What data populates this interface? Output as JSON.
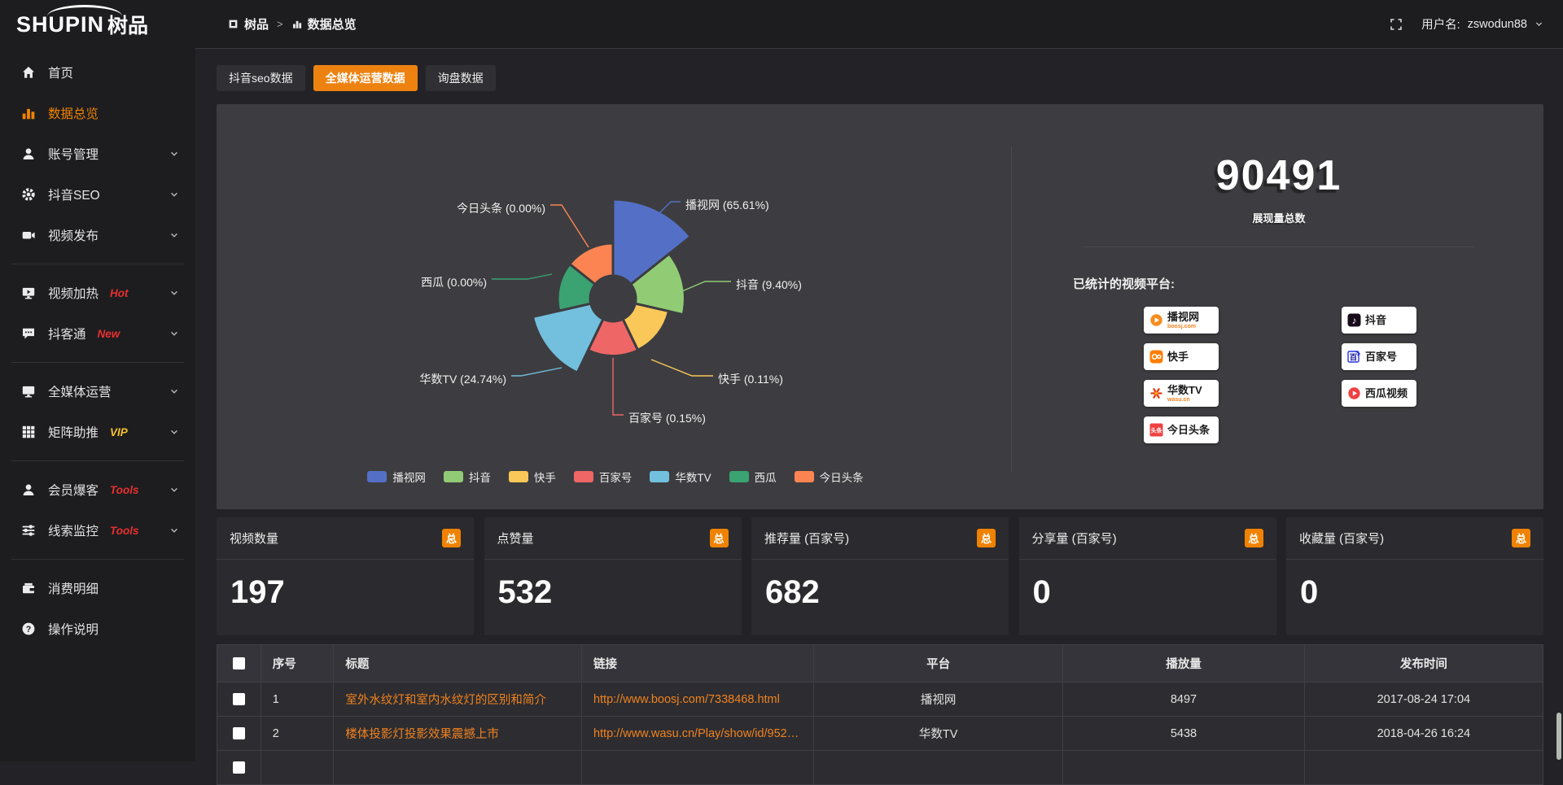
{
  "logo": {
    "latin": "SHUPIN",
    "cn": "树品"
  },
  "topbar": {
    "breadcrumb": {
      "root": "树品",
      "current": "数据总览"
    },
    "username_label": "用户名:",
    "username": "zswodun88"
  },
  "sidebar": {
    "items": [
      {
        "id": "homepage",
        "label": "首页",
        "icon": "home-icon"
      },
      {
        "id": "data-overview",
        "label": "数据总览",
        "icon": "bar-chart-icon",
        "active": true
      },
      {
        "id": "account-management",
        "label": "账号管理",
        "icon": "user-icon",
        "chevron": true
      },
      {
        "id": "douyin-seo",
        "label": "抖音SEO",
        "icon": "gear-icon",
        "chevron": true
      },
      {
        "id": "video-publish",
        "label": "视频发布",
        "icon": "video-camera-icon",
        "chevron": true
      },
      {
        "type": "divider"
      },
      {
        "id": "video-heating",
        "label": "视频加热",
        "icon": "monitor-play-icon",
        "badge": "Hot",
        "badge_color": "red",
        "chevron": true
      },
      {
        "id": "douketong",
        "label": "抖客通",
        "icon": "chat-icon",
        "badge": "New",
        "badge_color": "red",
        "chevron": true
      },
      {
        "type": "divider"
      },
      {
        "id": "all-media-operation",
        "label": "全媒体运营",
        "icon": "monitor-icon",
        "chevron": true
      },
      {
        "id": "matrix-boost",
        "label": "矩阵助推",
        "icon": "grid-icon",
        "badge": "VIP",
        "badge_color": "gold",
        "chevron": true
      },
      {
        "type": "divider"
      },
      {
        "id": "member-baoke",
        "label": "会员爆客",
        "icon": "user-icon",
        "badge": "Tools",
        "badge_color": "red",
        "chevron": true
      },
      {
        "id": "clue-monitoring",
        "label": "线索监控",
        "icon": "sliders-icon",
        "badge": "Tools",
        "badge_color": "red",
        "chevron": true
      },
      {
        "type": "divider"
      },
      {
        "id": "consumption-details",
        "label": "消费明细",
        "icon": "wallet-icon"
      },
      {
        "id": "operation-guide",
        "label": "操作说明",
        "icon": "help-icon"
      }
    ]
  },
  "tabs": [
    {
      "label": "抖音seo数据",
      "active": false
    },
    {
      "label": "全媒体运营数据",
      "active": true
    },
    {
      "label": "询盘数据",
      "active": false
    }
  ],
  "chart_data": {
    "type": "pie",
    "subtype": "nightingale-rose",
    "title": "",
    "categories": [
      "播视网",
      "抖音",
      "快手",
      "百家号",
      "华数TV",
      "西瓜",
      "今日头条"
    ],
    "values": [
      65.61,
      9.4,
      0.11,
      0.15,
      24.74,
      0.0,
      0.0
    ],
    "unit": "%",
    "labels": [
      "播视网 (65.61%)",
      "抖音 (9.40%)",
      "快手 (0.11%)",
      "百家号 (0.15%)",
      "华数TV (24.74%)",
      "西瓜 (0.00%)",
      "今日头条 (0.00%)"
    ],
    "colors": [
      "#5470c6",
      "#91cc75",
      "#fac858",
      "#ee6666",
      "#73c0de",
      "#3ba272",
      "#fc8452"
    ],
    "legend_position": "bottom",
    "legend": [
      "播视网",
      "抖音",
      "快手",
      "百家号",
      "华数TV",
      "西瓜",
      "今日头条"
    ]
  },
  "summary": {
    "value": "90491",
    "label": "展现量总数",
    "platforms_title": "已统计的视频平台:",
    "platforms": [
      {
        "name": "播视网",
        "sub": "boosj.com",
        "icon": "boosj-logo"
      },
      {
        "name": "快手",
        "icon": "kuaishou-logo"
      },
      {
        "name": "华数TV",
        "sub": "wasu.cn",
        "icon": "wasu-logo"
      },
      {
        "name": "今日头条",
        "icon": "toutiao-logo"
      },
      {
        "name": "抖音",
        "icon": "douyin-logo"
      },
      {
        "name": "百家号",
        "icon": "baijiahao-logo"
      },
      {
        "name": "西瓜视频",
        "icon": "xigua-logo"
      }
    ]
  },
  "stat_cards": [
    {
      "title": "视频数量",
      "badge": "总",
      "value": "197"
    },
    {
      "title": "点赞量",
      "badge": "总",
      "value": "532"
    },
    {
      "title": "推荐量 (百家号)",
      "badge": "总",
      "value": "682"
    },
    {
      "title": "分享量 (百家号)",
      "badge": "总",
      "value": "0"
    },
    {
      "title": "收藏量 (百家号)",
      "badge": "总",
      "value": "0"
    }
  ],
  "table": {
    "headers": [
      "序号",
      "标题",
      "链接",
      "平台",
      "播放量",
      "发布时间"
    ],
    "rows": [
      {
        "cells": [
          "1",
          "室外水纹灯和室内水纹灯的区别和简介",
          "http://www.boosj.com/7338468.html",
          "播视网",
          "8497",
          "2017-08-24 17:04"
        ]
      },
      {
        "cells": [
          "2",
          "楼体投影灯投影效果震撼上市",
          "http://www.wasu.cn/Play/show/id/952…",
          "华数TV",
          "5438",
          "2018-04-26 16:24"
        ]
      },
      {
        "partial": true,
        "cells": [
          "",
          "",
          "",
          "",
          "",
          ""
        ]
      }
    ]
  }
}
